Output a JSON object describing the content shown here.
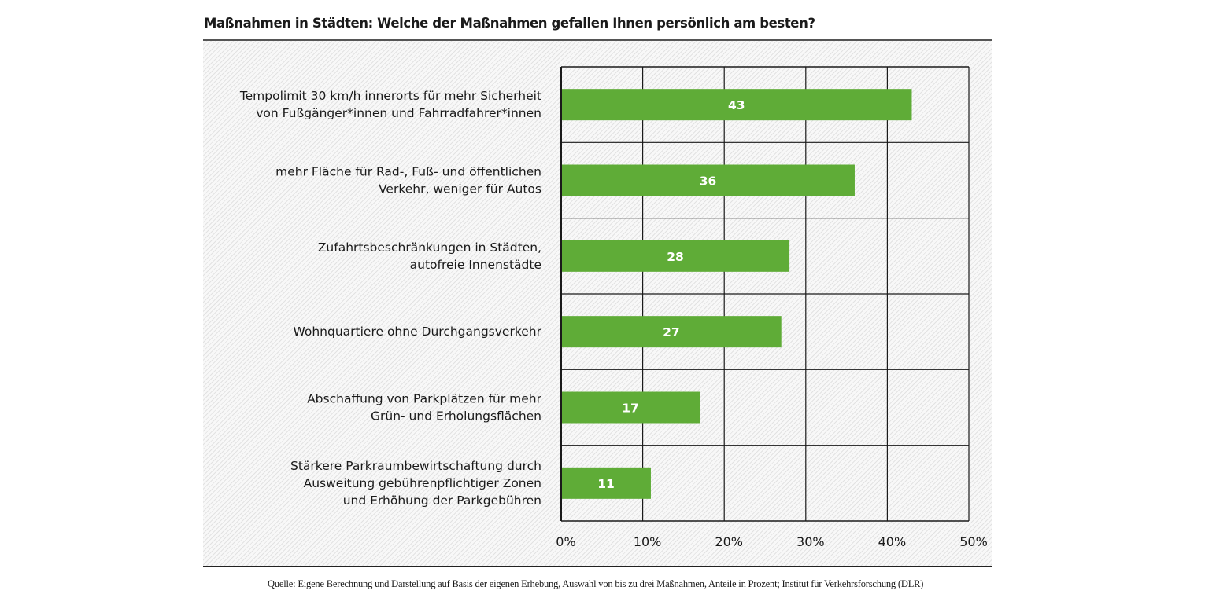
{
  "chart_data": {
    "type": "bar",
    "orientation": "horizontal",
    "title": "Maßnahmen in Städten: Welche der Maßnahmen gefallen Ihnen persönlich am besten?",
    "categories": [
      [
        "Tempolimit 30 km/h innerorts für mehr Sicherheit",
        "von Fußgänger*innen und Fahrradfahrer*innen"
      ],
      [
        "mehr Fläche für Rad-, Fuß- und öffentlichen",
        "Verkehr, weniger für Autos"
      ],
      [
        "Zufahrtsbeschränkungen in Städten,",
        "autofreie Innenstädte"
      ],
      [
        "Wohnquartiere ohne Durchgangsverkehr"
      ],
      [
        "Abschaffung von Parkplätzen für mehr",
        "Grün- und Erholungsflächen"
      ],
      [
        "Stärkere Parkraumbewirtschaftung durch",
        "Ausweitung gebührenpflichtiger Zonen",
        "und Erhöhung der Parkgebühren"
      ]
    ],
    "values": [
      43,
      36,
      28,
      27,
      17,
      11
    ],
    "data_labels": [
      "43",
      "36",
      "28",
      "27",
      "17",
      "11"
    ],
    "xlabel": "",
    "ylabel": "",
    "xlim": [
      0,
      50
    ],
    "xticks": [
      0,
      10,
      20,
      30,
      40,
      50
    ],
    "xtick_labels": [
      "0%",
      "10%",
      "20%",
      "30%",
      "40%",
      "50%"
    ],
    "grid": true,
    "legend": "none",
    "bar_color": "#5fac37",
    "source": "Quelle: Eigene Berechnung und Darstellung auf Basis der eigenen Erhebung, Auswahl von bis zu drei Maßnahmen, Anteile in Prozent; Institut für Verkehrsforschung (DLR)"
  }
}
